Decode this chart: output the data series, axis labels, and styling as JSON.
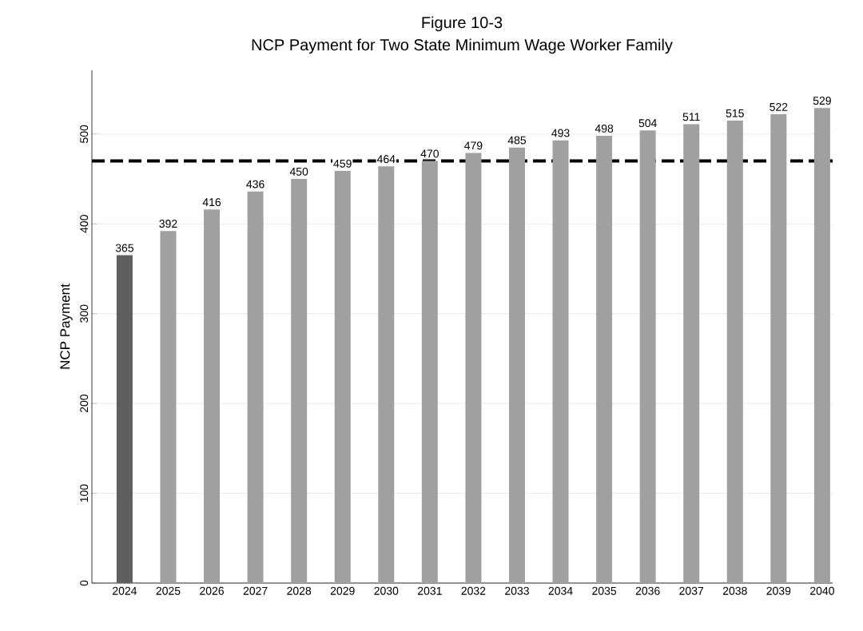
{
  "chart_data": {
    "type": "bar",
    "title": "Figure 10-3",
    "subtitle": "NCP Payment for Two State Minimum Wage Worker Family",
    "ylabel": "NCP Payment",
    "categories": [
      "2024",
      "2025",
      "2026",
      "2027",
      "2028",
      "2029",
      "2030",
      "2031",
      "2032",
      "2033",
      "2034",
      "2035",
      "2036",
      "2037",
      "2038",
      "2039",
      "2040"
    ],
    "values": [
      365,
      392,
      416,
      436,
      450,
      459,
      464,
      470,
      479,
      485,
      493,
      498,
      504,
      511,
      515,
      522,
      529
    ],
    "colors": [
      "#5f5f5f",
      "#a0a0a0",
      "#a0a0a0",
      "#a0a0a0",
      "#a0a0a0",
      "#a0a0a0",
      "#a0a0a0",
      "#a0a0a0",
      "#a0a0a0",
      "#a0a0a0",
      "#a0a0a0",
      "#a0a0a0",
      "#a0a0a0",
      "#a0a0a0",
      "#a0a0a0",
      "#a0a0a0",
      "#a0a0a0"
    ],
    "ylim": [
      0,
      571
    ],
    "yticks": [
      0,
      100,
      200,
      300,
      400,
      500
    ],
    "grid": "y",
    "data_labels": true,
    "ref_lines": [
      {
        "axis": "y",
        "value": 470,
        "color": "#000000",
        "line_style": "dashed"
      }
    ]
  }
}
